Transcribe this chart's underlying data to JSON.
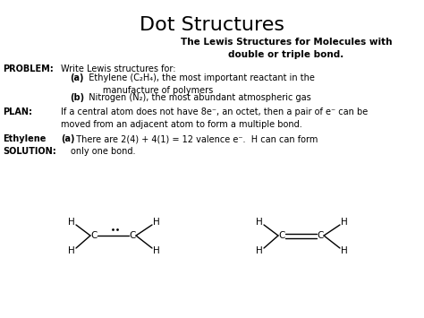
{
  "title": "Dot Structures",
  "title_fontsize": 16,
  "subtitle": "The Lewis Structures for Molecules with\ndouble or triple bond.",
  "subtitle_fontsize": 7.5,
  "bg_color": "#ffffff",
  "text_color": "#000000",
  "body_fontsize": 7.0,
  "problem_label": "PROBLEM:",
  "problem_text": "Write Lewis structures for:",
  "item_a_bold": "(a)",
  "item_a_text": "  Ethylene (C₂H₄), the most important reactant in the\n       manufacture of polymers",
  "item_b_bold": "(b)",
  "item_b_text": "  Nitrogen (N₂), the most abundant atmospheric gas",
  "plan_label": "PLAN:",
  "plan_text": "If a central atom does not have 8e⁻, an octet, then a pair of e⁻ can be\nmoved from an adjacent atom to form a multiple bond.",
  "ethylene_label": "Ethylene\nSOLUTION:",
  "solution_bold": "(a)",
  "solution_text": "  There are 2(4) + 4(1) = 12 valence e⁻.  H can can form\nonly one bond.",
  "mol_fs": 7.5,
  "lw": 1.0
}
